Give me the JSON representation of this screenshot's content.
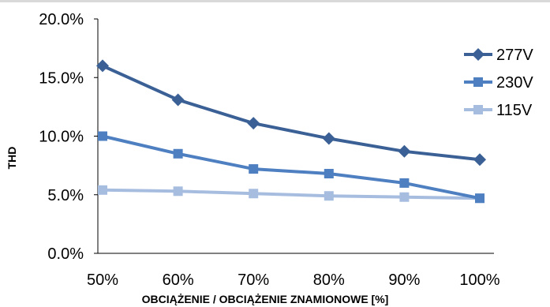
{
  "chart_data": {
    "type": "line",
    "categories": [
      "50%",
      "60%",
      "70%",
      "80%",
      "90%",
      "100%"
    ],
    "xlabel": "OBCIĄŻENIE / OBCIĄŻENIE ZNAMIONOWE [%]",
    "ylabel": "THD",
    "ylim": [
      0,
      20
    ],
    "yticks": [
      "0.0%",
      "5.0%",
      "10.0%",
      "15.0%",
      "20.0%"
    ],
    "ytick_values": [
      0,
      5,
      10,
      15,
      20
    ],
    "grid": "none",
    "legend_position": "right",
    "series": [
      {
        "name": "277V",
        "marker": "diamond",
        "color": "#3a6096",
        "values": [
          16.0,
          13.1,
          11.1,
          9.8,
          8.7,
          8.0
        ]
      },
      {
        "name": "230V",
        "marker": "square",
        "color": "#4e7fc1",
        "values": [
          10.0,
          8.5,
          7.2,
          6.8,
          6.0,
          4.7
        ]
      },
      {
        "name": "115V",
        "marker": "square",
        "color": "#a7bde0",
        "values": [
          5.4,
          5.3,
          5.1,
          4.9,
          4.8,
          4.7
        ]
      }
    ]
  }
}
